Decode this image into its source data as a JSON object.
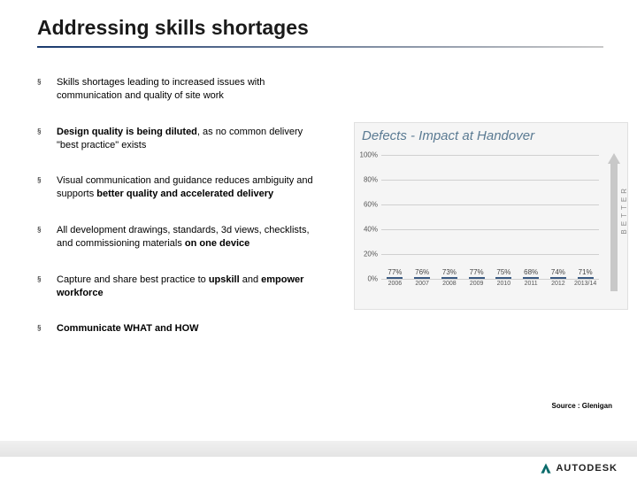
{
  "title": "Addressing skills shortages",
  "bullets": [
    {
      "pre": "Skills shortages leading to increased issues with communication and quality of site work",
      "bold": "",
      "post": ""
    },
    {
      "pre": "",
      "bold": "Design quality is being diluted",
      "post": ", as no common delivery \"best practice\" exists"
    },
    {
      "pre": "Visual communication and guidance reduces ambiguity and supports ",
      "bold": "better quality and accelerated delivery",
      "post": ""
    },
    {
      "pre": "All development drawings, standards, 3d views, checklists, and commissioning materials ",
      "bold": "on one device",
      "post": ""
    },
    {
      "pre": "Capture and share best practice to ",
      "bold": "upskill",
      "post2": " and ",
      "bold2": "empower workforce",
      "post": ""
    },
    {
      "pre": "",
      "bold": "Communicate WHAT and HOW",
      "post": ""
    }
  ],
  "chart": {
    "title": "Defects - Impact at Handover",
    "type": "bar",
    "categories": [
      "2006",
      "2007",
      "2008",
      "2009",
      "2010",
      "2011",
      "2012",
      "2013/14"
    ],
    "values": [
      77,
      76,
      73,
      77,
      75,
      68,
      74,
      71
    ],
    "value_labels": [
      "77%",
      "76%",
      "73%",
      "77%",
      "75%",
      "68%",
      "74%",
      "71%"
    ],
    "ylim": [
      0,
      100
    ],
    "yticks": [
      0,
      20,
      40,
      60,
      80,
      100
    ],
    "ytick_labels": [
      "0%",
      "20%",
      "40%",
      "60%",
      "80%",
      "100%"
    ],
    "bar_color_top": "#7b9ec4",
    "bar_color_bottom": "#5a7fa8",
    "bar_border": "#3a5a82",
    "grid_color": "#d0d0d0",
    "background_color": "#f5f5f5",
    "arrow_color": "#c8c8c8",
    "arrow_label": "BETTER",
    "title_color": "#5a7a92",
    "title_fontsize": 15,
    "label_fontsize": 8
  },
  "source": "Source : Glenigan",
  "logo_text": "AUTODESK"
}
